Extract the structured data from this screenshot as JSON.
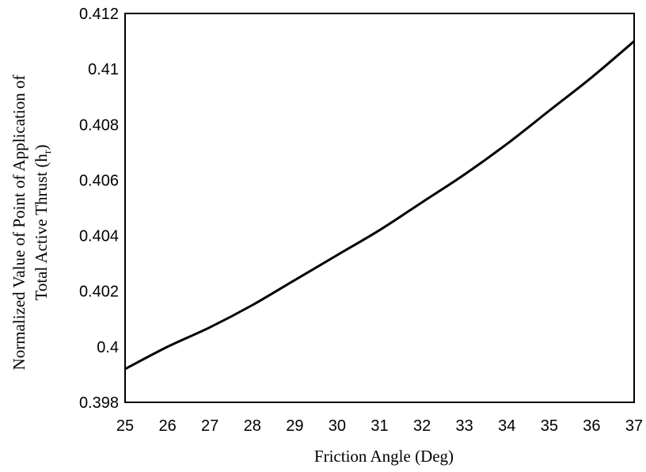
{
  "chart_data": {
    "type": "line",
    "title": "",
    "xlabel": "Friction Angle (Deg)",
    "ylabel_line1": "Normalized Value of Point of  Application of",
    "ylabel_line2_main": "Total  Active Thrust (h",
    "ylabel_line2_sub": "r",
    "ylabel_line2_end": ")",
    "xlim": [
      25,
      37
    ],
    "ylim": [
      0.398,
      0.412
    ],
    "x_ticks": [
      25,
      26,
      27,
      28,
      29,
      30,
      31,
      32,
      33,
      34,
      35,
      36,
      37
    ],
    "y_ticks": [
      0.398,
      0.4,
      0.402,
      0.404,
      0.406,
      0.408,
      0.41,
      0.412
    ],
    "y_tick_labels": [
      "0.398",
      "0.4",
      "0.402",
      "0.404",
      "0.406",
      "0.408",
      "0.41",
      "0.412"
    ],
    "grid": false,
    "series": [
      {
        "color": "#000000",
        "x": [
          25,
          26,
          27,
          28,
          29,
          30,
          31,
          32,
          33,
          34,
          35,
          36,
          37
        ],
        "y": [
          0.3992,
          0.4,
          0.4007,
          0.4015,
          0.4024,
          0.4033,
          0.4042,
          0.4052,
          0.4062,
          0.4073,
          0.4085,
          0.4097,
          0.411
        ]
      }
    ]
  }
}
